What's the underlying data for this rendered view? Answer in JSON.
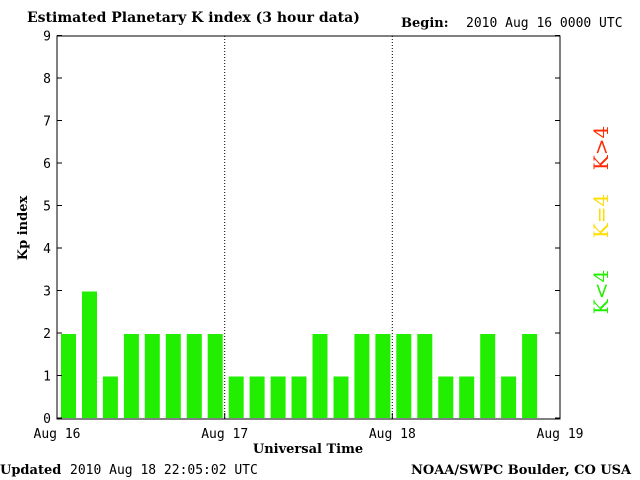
{
  "header": {
    "title": "Estimated Planetary K index (3 hour data)",
    "begin_label": "Begin:",
    "begin_value": "2010 Aug 16 0000 UTC"
  },
  "footer": {
    "updated_label": "Updated",
    "updated_value": "2010 Aug 18 22:05:02 UTC",
    "credit": "NOAA/SWPC Boulder, CO USA"
  },
  "legend": {
    "items": [
      {
        "label": "K>4",
        "color": "#ff2a00"
      },
      {
        "label": "K=4",
        "color": "#ffdd00"
      },
      {
        "label": "K<4",
        "color": "#22ee00"
      }
    ]
  },
  "chart_data": {
    "type": "bar",
    "title": "Estimated Planetary K index (3 hour data)",
    "xlabel": "Universal Time",
    "ylabel": "Kp index",
    "xticks": [
      "Aug 16",
      "Aug 17",
      "Aug 18",
      "Aug 19"
    ],
    "yticks": [
      "0",
      "1",
      "2",
      "3",
      "4",
      "5",
      "6",
      "7",
      "8",
      "9"
    ],
    "ylim": [
      0,
      9
    ],
    "xlim_days": [
      0,
      3
    ],
    "grid": false,
    "day_separators": [
      "Aug 17",
      "Aug 18"
    ],
    "interval_hours": 3,
    "bar_color": "#22ee00",
    "values": [
      2,
      3,
      1,
      2,
      2,
      2,
      2,
      2,
      1,
      1,
      1,
      1,
      2,
      1,
      2,
      2,
      2,
      2,
      1,
      1,
      2,
      1,
      2
    ]
  }
}
